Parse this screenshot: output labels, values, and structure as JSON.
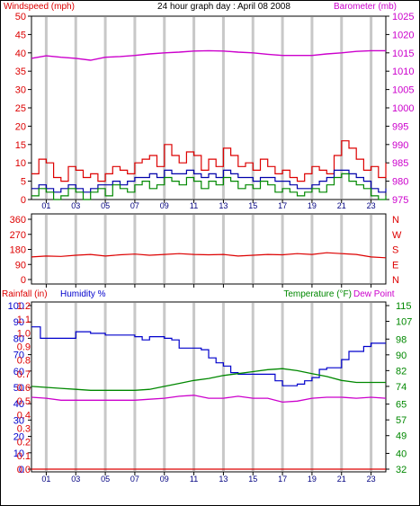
{
  "chart_data": [
    {
      "type": "line",
      "title": "24 hour graph day : April 08 2008",
      "left_axis_label": "Windspeed (mph)",
      "right_axis_label": "Barometer (mb)",
      "x_ticks": [
        "01",
        "03",
        "05",
        "07",
        "09",
        "11",
        "13",
        "15",
        "17",
        "19",
        "21",
        "23"
      ],
      "left_ticks": [
        0,
        5,
        10,
        15,
        20,
        25,
        30,
        35,
        40,
        45,
        50
      ],
      "right_ticks": [
        975,
        980,
        985,
        990,
        995,
        1000,
        1005,
        1010,
        1015,
        1020,
        1025
      ],
      "left_range": [
        0,
        50
      ],
      "right_range": [
        975,
        1025
      ],
      "series": [
        {
          "axis": "right",
          "color": "#cc00cc",
          "x": [
            0,
            1,
            2,
            3,
            4,
            5,
            6,
            7,
            8,
            9,
            10,
            11,
            12,
            13,
            14,
            15,
            16,
            17,
            18,
            19,
            20,
            21,
            22,
            23,
            24
          ],
          "values": [
            1013.5,
            1014.2,
            1013.8,
            1013.5,
            1013.0,
            1013.8,
            1014.0,
            1014.3,
            1014.7,
            1015.0,
            1015.2,
            1015.5,
            1015.6,
            1015.5,
            1015.2,
            1015.0,
            1014.6,
            1014.3,
            1014.3,
            1014.3,
            1014.7,
            1015.0,
            1015.4,
            1015.6,
            1015.6
          ]
        },
        {
          "axis": "left",
          "color": "#dd0000",
          "x": [
            0,
            0.5,
            1,
            1.5,
            2,
            2.5,
            3,
            3.5,
            4,
            4.5,
            5,
            5.5,
            6,
            6.5,
            7,
            7.5,
            8,
            8.5,
            9,
            9.5,
            10,
            10.5,
            11,
            11.5,
            12,
            12.5,
            13,
            13.5,
            14,
            14.5,
            15,
            15.5,
            16,
            16.5,
            17,
            17.5,
            18,
            18.5,
            19,
            19.5,
            20,
            20.5,
            21,
            21.5,
            22,
            22.5,
            23,
            23.5,
            24
          ],
          "values": [
            7,
            11,
            10,
            6,
            5,
            9,
            8,
            6,
            7,
            5,
            7,
            9,
            8,
            7,
            10,
            11,
            12,
            9,
            15,
            12,
            10,
            13,
            12,
            8,
            11,
            9,
            14,
            12,
            9,
            10,
            8,
            11,
            9,
            7,
            8,
            6,
            5,
            7,
            9,
            8,
            7,
            12,
            16,
            14,
            11,
            8,
            9,
            6,
            10
          ]
        },
        {
          "axis": "left",
          "color": "#0000aa",
          "x": [
            0,
            0.5,
            1,
            1.5,
            2,
            2.5,
            3,
            3.5,
            4,
            4.5,
            5,
            5.5,
            6,
            6.5,
            7,
            7.5,
            8,
            8.5,
            9,
            9.5,
            10,
            10.5,
            11,
            11.5,
            12,
            12.5,
            13,
            13.5,
            14,
            14.5,
            15,
            15.5,
            16,
            16.5,
            17,
            17.5,
            18,
            18.5,
            19,
            19.5,
            20,
            20.5,
            21,
            21.5,
            22,
            22.5,
            23,
            23.5,
            24
          ],
          "values": [
            3,
            4,
            3,
            2,
            3,
            4,
            3,
            2,
            3,
            4,
            4,
            5,
            4,
            5,
            6,
            6,
            7,
            6,
            8,
            7,
            7,
            8,
            7,
            6,
            7,
            6,
            8,
            7,
            6,
            6,
            5,
            6,
            6,
            5,
            5,
            4,
            3,
            3,
            4,
            5,
            6,
            8,
            8,
            7,
            6,
            5,
            3,
            2,
            3
          ]
        },
        {
          "axis": "left",
          "color": "#008800",
          "x": [
            0,
            0.5,
            1,
            1.5,
            2,
            2.5,
            3,
            3.5,
            4,
            4.5,
            5,
            5.5,
            6,
            6.5,
            7,
            7.5,
            8,
            8.5,
            9,
            9.5,
            10,
            10.5,
            11,
            11.5,
            12,
            12.5,
            13,
            13.5,
            14,
            14.5,
            15,
            15.5,
            16,
            16.5,
            17,
            17.5,
            18,
            18.5,
            19,
            19.5,
            20,
            20.5,
            21,
            21.5,
            22,
            22.5,
            23,
            23.5,
            24
          ],
          "values": [
            1,
            3,
            2,
            0,
            1,
            3,
            2,
            0,
            2,
            3,
            1,
            4,
            3,
            2,
            4,
            5,
            3,
            4,
            6,
            5,
            4,
            6,
            5,
            3,
            5,
            4,
            6,
            5,
            3,
            4,
            3,
            5,
            4,
            2,
            3,
            2,
            1,
            2,
            3,
            2,
            4,
            6,
            7,
            5,
            4,
            3,
            1,
            0,
            1
          ]
        }
      ]
    },
    {
      "type": "line",
      "title": "",
      "right_axis_label": "",
      "left_ticks": [
        0,
        90,
        180,
        270,
        360
      ],
      "right_ticks": [
        "N",
        "W",
        "S",
        "E",
        "N"
      ],
      "left_range": [
        0,
        360
      ],
      "x_ticks": [],
      "series": [
        {
          "axis": "left",
          "color": "#dd0000",
          "x": [
            0,
            1,
            2,
            3,
            4,
            5,
            6,
            7,
            8,
            9,
            10,
            11,
            12,
            13,
            14,
            15,
            16,
            17,
            18,
            19,
            20,
            21,
            22,
            23,
            24
          ],
          "values": [
            135,
            140,
            138,
            145,
            150,
            140,
            148,
            152,
            145,
            150,
            155,
            150,
            148,
            150,
            140,
            145,
            150,
            148,
            155,
            150,
            160,
            155,
            150,
            135,
            130
          ]
        }
      ]
    },
    {
      "type": "line",
      "left_outer_label": "Rainfall (in)",
      "left_inner_label": "Humidity %",
      "right_axis_label": "Temperature (°F)",
      "right_axis_label_2": "Dew Point",
      "x_ticks": [
        "01",
        "03",
        "05",
        "07",
        "09",
        "11",
        "13",
        "15",
        "17",
        "19",
        "21",
        "23"
      ],
      "rainfall_ticks": [
        "0.0",
        "0.1",
        "0.2",
        "0.3",
        "0.4",
        "0.5",
        "0.6",
        "0.7",
        "0.8",
        "0.9",
        "1.0",
        "1.1",
        "1.2"
      ],
      "humidity_ticks": [
        0,
        10,
        20,
        30,
        40,
        50,
        60,
        70,
        80,
        90,
        100
      ],
      "temperature_ticks": [
        32,
        40,
        49,
        57,
        65,
        74,
        82,
        90,
        98,
        107,
        115
      ],
      "humidity_range": [
        0,
        100
      ],
      "temperature_range": [
        32,
        115
      ],
      "rainfall_range": [
        0,
        1.2
      ],
      "series": [
        {
          "name": "Humidity %",
          "axis": "humidity",
          "color": "#0000cc",
          "x": [
            0,
            0.5,
            0.6,
            1,
            2,
            3,
            4,
            5,
            6,
            7,
            7.5,
            8,
            9,
            9.5,
            10,
            11,
            11.5,
            12,
            12.5,
            13,
            13.5,
            14,
            15,
            16,
            16.5,
            17,
            18,
            18.5,
            19,
            19.5,
            20,
            21,
            21.5,
            22,
            22.5,
            23,
            23.5,
            24
          ],
          "values": [
            87,
            87,
            80,
            80,
            80,
            84,
            83,
            82,
            82,
            81,
            79,
            81,
            80,
            79,
            74,
            74,
            73,
            68,
            65,
            63,
            59,
            58,
            58,
            58,
            54,
            51,
            52,
            54,
            56,
            61,
            62,
            67,
            72,
            72,
            75,
            77,
            77,
            77
          ]
        },
        {
          "name": "Temperature (°F)",
          "axis": "temperature",
          "color": "#008800",
          "x": [
            0,
            1,
            2,
            3,
            4,
            5,
            6,
            7,
            8,
            9,
            10,
            11,
            12,
            13,
            14,
            15,
            16,
            17,
            18,
            19,
            20,
            21,
            22,
            23,
            24
          ],
          "values": [
            74,
            73.5,
            73,
            72.5,
            72,
            72,
            72,
            72,
            72.5,
            74,
            75.5,
            77,
            78,
            79.5,
            80.5,
            81.5,
            82.5,
            83,
            82,
            80.5,
            79,
            77,
            76,
            76,
            76
          ]
        },
        {
          "name": "Dew Point",
          "axis": "temperature",
          "color": "#cc00cc",
          "x": [
            0,
            1,
            2,
            3,
            4,
            5,
            6,
            7,
            8,
            9,
            10,
            11,
            12,
            13,
            14,
            15,
            16,
            17,
            18,
            19,
            20,
            21,
            22,
            23,
            24
          ],
          "values": [
            68.5,
            68,
            67,
            67,
            67,
            67,
            67,
            67,
            67.5,
            68,
            69,
            69.5,
            68,
            68,
            69,
            68,
            68,
            66,
            66.5,
            68,
            68.5,
            68.5,
            68,
            68.5,
            68
          ]
        },
        {
          "name": "Rainfall (in)",
          "axis": "rainfall",
          "color": "#dd0000",
          "x": [
            0,
            24
          ],
          "values": [
            0,
            0
          ]
        }
      ]
    }
  ]
}
